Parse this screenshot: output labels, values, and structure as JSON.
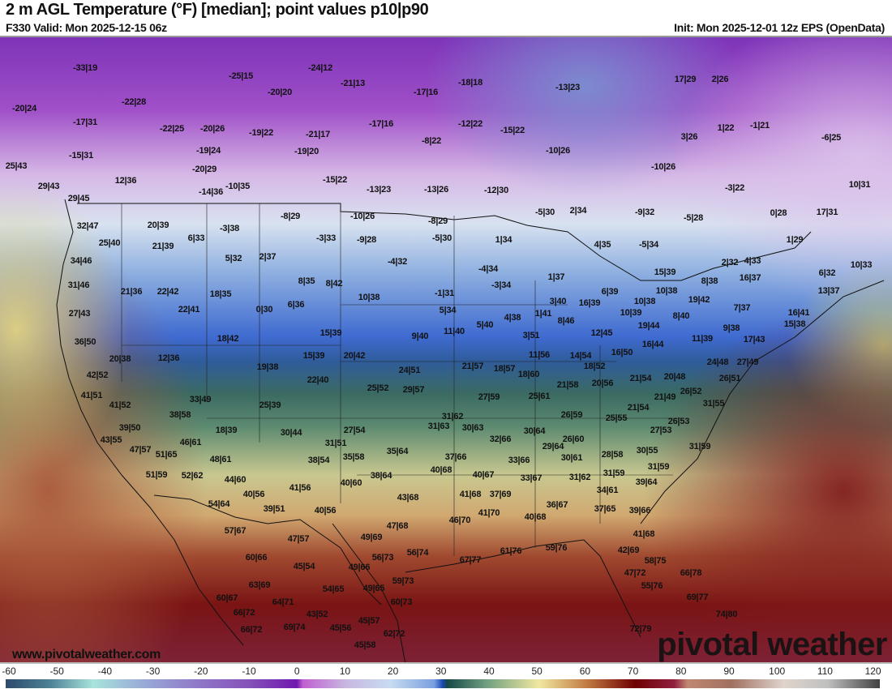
{
  "header": {
    "title": "2 m AGL Temperature (°F) [median]; point values p10|p90",
    "valid": "F330 Valid: Mon 2025-12-15 06z",
    "init": "Init: Mon 2025-12-01 12z EPS (OpenData)"
  },
  "watermark": {
    "site": "www.pivotalweather.com",
    "brand": "pivotal weather"
  },
  "colorbar": {
    "unit": "°F",
    "ticks": [
      "-60",
      "-50",
      "-40",
      "-30",
      "-20",
      "-10",
      "0",
      "10",
      "20",
      "30",
      "40",
      "50",
      "60",
      "70",
      "80",
      "90",
      "100",
      "110",
      "120"
    ]
  },
  "point_values": [
    "-33|19",
    "-25|15",
    "-24|12",
    "-21|13",
    "-20|20",
    "-17|16",
    "-18|18",
    "-13|23",
    "17|29",
    "2|26",
    "-20|24",
    "-22|28",
    "-17|31",
    "-22|25",
    "-20|26",
    "-19|22",
    "-21|17",
    "-17|16",
    "-12|22",
    "-15|22",
    "-8|22",
    "1|22",
    "-1|21",
    "3|26",
    "-6|25",
    "-15|31",
    "-19|24",
    "-19|20",
    "-10|26",
    "25|43",
    "-20|29",
    "29|43",
    "12|36",
    "-15|22",
    "-10|26",
    "-14|36",
    "-10|35",
    "-13|23",
    "-13|26",
    "-12|30",
    "-3|22",
    "10|31",
    "29|45",
    "32|47",
    "20|39",
    "-8|29",
    "-10|26",
    "-8|29",
    "-5|30",
    "2|34",
    "-9|32",
    "-5|28",
    "0|28",
    "17|31",
    "6|33",
    "-3|38",
    "-3|33",
    "-9|28",
    "-5|30",
    "25|40",
    "21|39",
    "1|34",
    "4|35",
    "-5|34",
    "1|29",
    "34|46",
    "5|32",
    "2|37",
    "-4|32",
    "2|32",
    "4|33",
    "10|33",
    "-4|34",
    "15|39",
    "6|32",
    "1|37",
    "31|46",
    "8|35",
    "8|42",
    "-3|34",
    "16|37",
    "8|38",
    "21|36",
    "22|42",
    "18|35",
    "10|38",
    "-1|31",
    "6|39",
    "10|38",
    "19|42",
    "13|37",
    "0|30",
    "6|36",
    "3|40",
    "16|39",
    "10|38",
    "7|37",
    "27|43",
    "22|41",
    "5|34",
    "10|39",
    "8|40",
    "16|41",
    "4|38",
    "1|41",
    "8|46",
    "15|38",
    "9|38",
    "15|39",
    "18|42",
    "9|40",
    "11|40",
    "5|40",
    "3|51",
    "12|45",
    "19|44",
    "11|39",
    "36|50",
    "16|44",
    "17|43",
    "20|38",
    "12|36",
    "15|39",
    "20|42",
    "11|56",
    "14|54",
    "16|50",
    "24|48",
    "27|49",
    "19|38",
    "24|51",
    "21|57",
    "18|57",
    "18|52",
    "20|48",
    "26|51",
    "42|52",
    "22|40",
    "18|60",
    "20|56",
    "21|54",
    "41|51",
    "25|52",
    "29|57",
    "21|58",
    "25|61",
    "21|49",
    "26|52",
    "27|59",
    "33|49",
    "41|52",
    "25|39",
    "31|55",
    "21|54",
    "38|58",
    "26|59",
    "25|55",
    "26|53",
    "31|62",
    "27|54",
    "18|39",
    "30|44",
    "39|50",
    "31|63",
    "30|63",
    "27|53",
    "30|64",
    "43|55",
    "46|61",
    "31|51",
    "32|66",
    "26|60",
    "31|59",
    "47|57",
    "51|65",
    "29|64",
    "30|55",
    "35|64",
    "35|58",
    "48|61",
    "38|54",
    "37|66",
    "30|61",
    "28|58",
    "33|66",
    "31|59",
    "31|59",
    "39|64",
    "40|68",
    "38|64",
    "51|59",
    "52|62",
    "40|67",
    "33|67",
    "31|62",
    "44|60",
    "40|60",
    "40|56",
    "41|56",
    "34|61",
    "43|68",
    "41|68",
    "37|69",
    "54|64",
    "39|51",
    "40|56",
    "36|67",
    "37|65",
    "39|66",
    "46|70",
    "41|70",
    "40|68",
    "47|68",
    "57|67",
    "41|68",
    "49|69",
    "47|57",
    "56|74",
    "67|77",
    "61|76",
    "59|76",
    "42|69",
    "56|73",
    "60|66",
    "58|75",
    "45|54",
    "49|66",
    "66|78",
    "47|72",
    "59|73",
    "63|69",
    "55|76",
    "54|65",
    "49|65",
    "60|67",
    "60|73",
    "69|77",
    "64|71",
    "66|72",
    "43|52",
    "74|80",
    "45|57",
    "45|56",
    "66|72",
    "69|74",
    "62|72",
    "72|79",
    "45|58"
  ]
}
